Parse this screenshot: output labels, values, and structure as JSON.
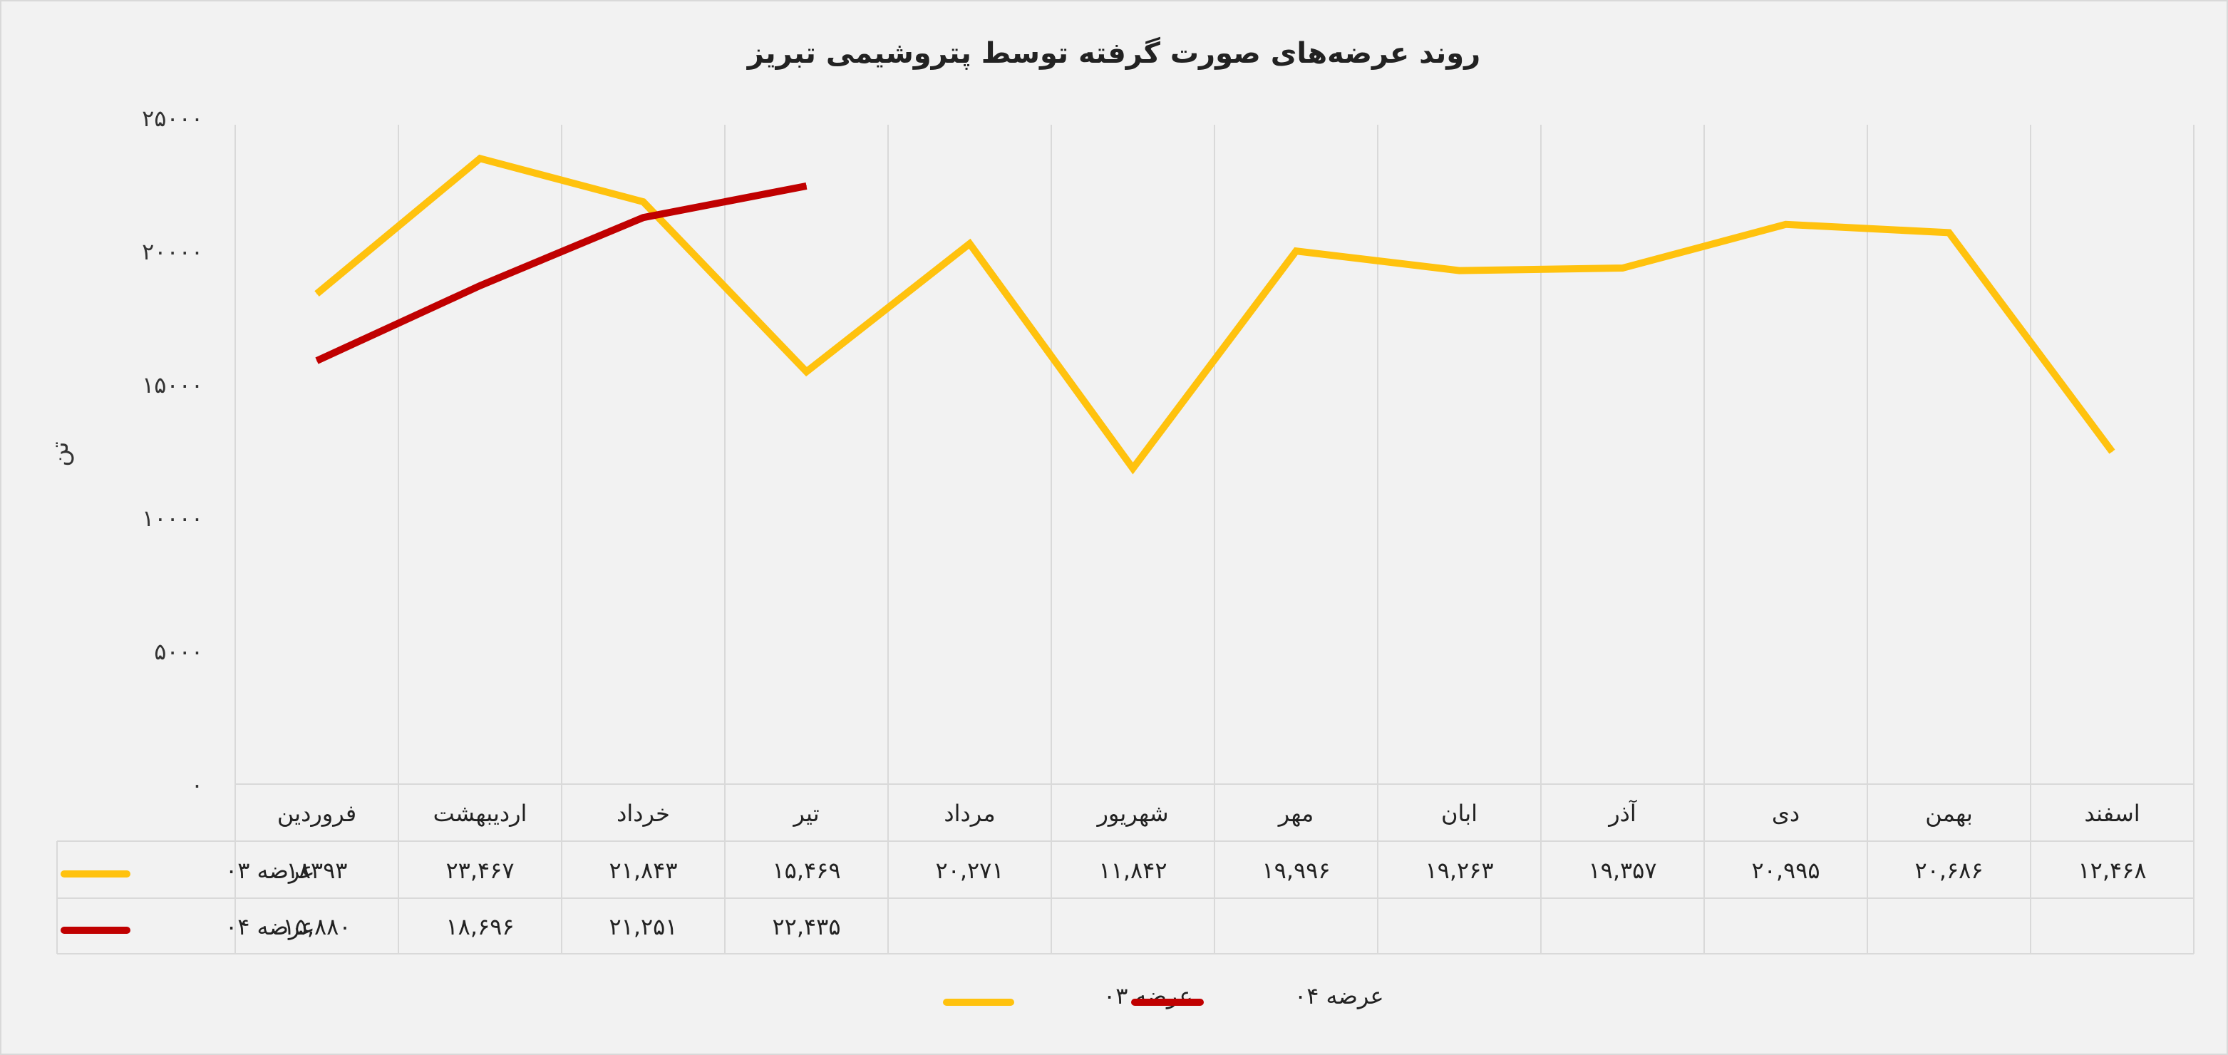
{
  "chart_data": {
    "type": "line",
    "title": "روند عرضه‌های صورت گرفته توسط پتروشیمی تبریز",
    "ylabel": "تن",
    "ylim": [
      0,
      25000
    ],
    "yticks": [
      "۰",
      "۵۰۰۰",
      "۱۰۰۰۰",
      "۱۵۰۰۰",
      "۲۰۰۰۰",
      "۲۵۰۰۰"
    ],
    "grid": true,
    "legend_position": "bottom",
    "data_table": true,
    "categories": [
      "فروردین",
      "اردیبهشت",
      "خرداد",
      "تیر",
      "مرداد",
      "شهریور",
      "مهر",
      "ابان",
      "آذر",
      "دی",
      "بهمن",
      "اسفند"
    ],
    "series": [
      {
        "name": "عرضه ۰۳",
        "color": "#FFC20E",
        "values": [
          18393,
          23467,
          21843,
          15469,
          20271,
          11842,
          19996,
          19263,
          19357,
          20995,
          20686,
          12468
        ],
        "labels": [
          "۱۸۳۹۳",
          "۲۳,۴۶۷",
          "۲۱,۸۴۳",
          "۱۵,۴۶۹",
          "۲۰,۲۷۱",
          "۱۱,۸۴۲",
          "۱۹,۹۹۶",
          "۱۹,۲۶۳",
          "۱۹,۳۵۷",
          "۲۰,۹۹۵",
          "۲۰,۶۸۶",
          "۱۲,۴۶۸"
        ]
      },
      {
        "name": "عرضه ۰۴",
        "color": "#C00000",
        "values": [
          15880,
          18696,
          21251,
          22435,
          null,
          null,
          null,
          null,
          null,
          null,
          null,
          null
        ],
        "labels": [
          "۱۵,۸۸۰",
          "۱۸,۶۹۶",
          "۲۱,۲۵۱",
          "۲۲,۴۳۵",
          "",
          "",
          "",
          "",
          "",
          "",
          "",
          ""
        ]
      }
    ]
  }
}
